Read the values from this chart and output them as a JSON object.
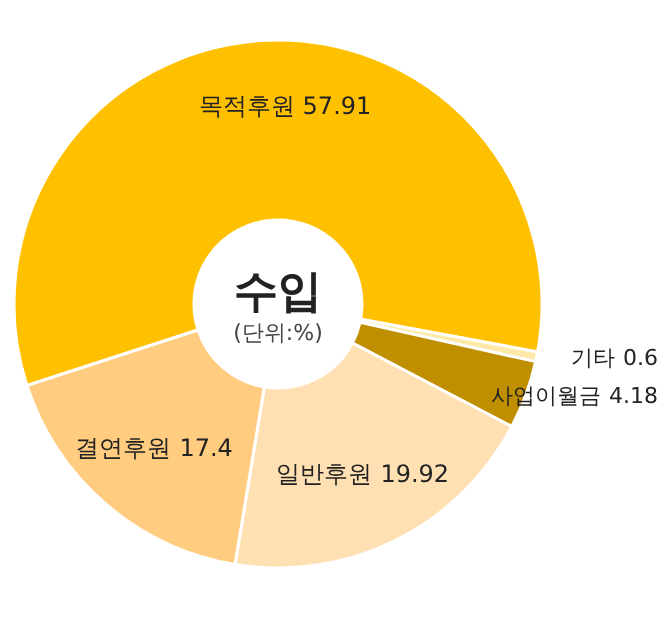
{
  "chart_data": {
    "type": "donut",
    "title": "수입",
    "subtitle": "(단위:%)",
    "categories": [
      "목적후원",
      "기타",
      "사업이월금",
      "일반후원",
      "결연후원"
    ],
    "values": [
      57.91,
      0.6,
      4.18,
      19.92,
      17.4
    ],
    "colors": [
      "#ffc000",
      "#ffe9a8",
      "#bf8f00",
      "#ffe0b3",
      "#ffcc80"
    ],
    "data_labels": true
  }
}
